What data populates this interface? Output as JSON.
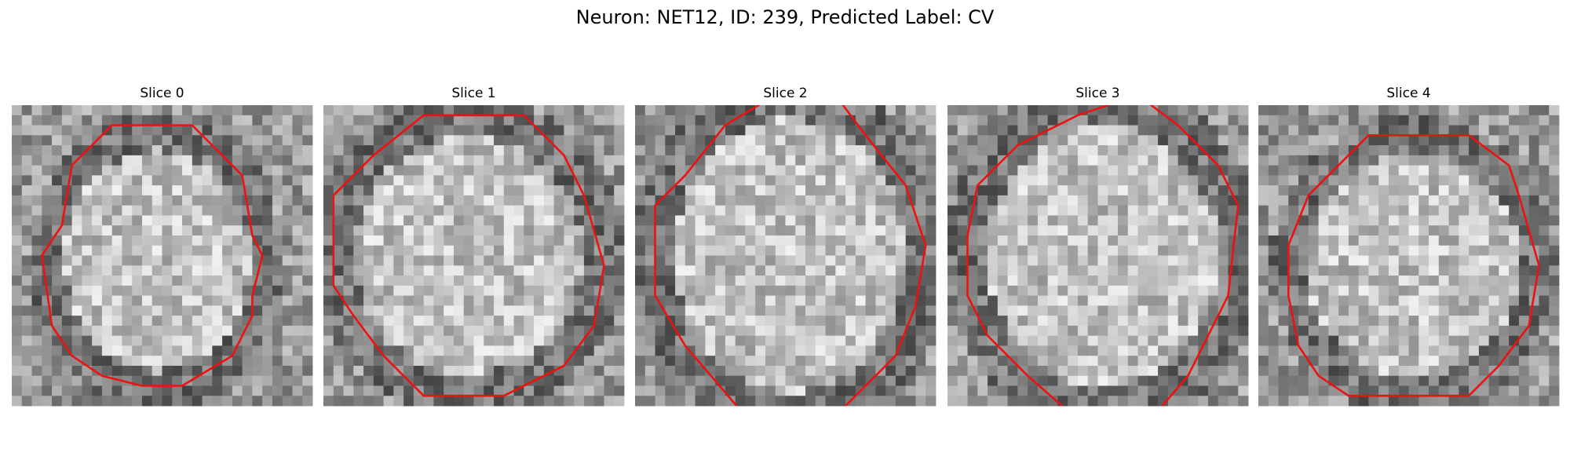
{
  "title": "Neuron: NET12, ID: 239, Predicted Label: CV",
  "panels": [
    {
      "title": "Slice 0"
    },
    {
      "title": "Slice 1"
    },
    {
      "title": "Slice 2"
    },
    {
      "title": "Slice 3"
    },
    {
      "title": "Slice 4"
    }
  ]
}
